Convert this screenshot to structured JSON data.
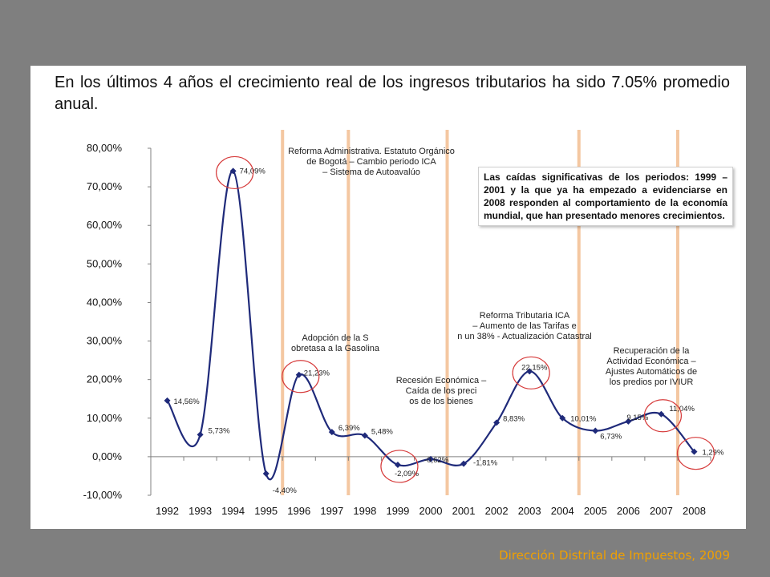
{
  "headline": "En los últimos 4 años el crecimiento real de los ingresos tributarios ha sido 7.05% promedio anual.",
  "footer": "Dirección Distrital de Impuestos, 2009",
  "callout": "Las caídas significativas de los periodos: 1999 – 2001 y la que ya ha empezado a evidenciarse en 2008 responden al comportamiento de la economía mundial, que han presentado menores crecimientos.",
  "colors": {
    "line": "#1f2a7a",
    "marker": "#1f2a7a",
    "reform_bar": "#f4c7a1",
    "circle": "#d63a3a",
    "footer": "#f0a000"
  },
  "chart_data": {
    "type": "line",
    "title": "",
    "xlabel": "",
    "ylabel": "",
    "ylim": [
      -10,
      80
    ],
    "y_ticks": [
      "-10,00%",
      "0,00%",
      "10,00%",
      "20,00%",
      "30,00%",
      "40,00%",
      "50,00%",
      "60,00%",
      "70,00%",
      "80,00%"
    ],
    "y_tick_values": [
      -10,
      0,
      10,
      20,
      30,
      40,
      50,
      60,
      70,
      80
    ],
    "categories": [
      "1992",
      "1993",
      "1994",
      "1995",
      "1996",
      "1997",
      "1998",
      "1999",
      "2000",
      "2001",
      "2002",
      "2003",
      "2004",
      "2005",
      "2006",
      "2007",
      "2008"
    ],
    "values": [
      14.56,
      5.73,
      74.09,
      -4.4,
      21.23,
      6.39,
      5.48,
      -2.09,
      -0.62,
      -1.81,
      8.83,
      22.15,
      10.01,
      6.73,
      9.15,
      11.04,
      1.29
    ],
    "labels": [
      "14,56%",
      "5,73%",
      "74,09%",
      "-4,40%",
      "21,23%",
      "6,39%",
      "5,48%",
      "-2,09%",
      "-0,62%",
      "-1,81%",
      "8,83%",
      "22,15%",
      "10,01%",
      "6,73%",
      "9,15%",
      "11,04%",
      "1,29%"
    ],
    "reform_lines_between": [
      [
        1995,
        1996
      ],
      [
        1997,
        1998
      ],
      [
        2000,
        2001
      ],
      [
        2004,
        2005
      ],
      [
        2007,
        2008
      ]
    ],
    "circled_years": [
      "1994",
      "1996",
      "1999",
      "2003",
      "2007",
      "2008"
    ],
    "annotations": [
      "Reforma Administrativa. Estatuto Orgánico de Bogotá – Cambio periodo ICA – Sistema de Autoavalúo",
      "Adopción de la Sobretasa a la Gasolina",
      "Recesión Económica – Caída de los precios de los bienes",
      "Reforma Tributaria ICA – Aumento de las Tarifas en un 38% - Actualización Catastral",
      "Recuperación de la Actividad Económica – Ajustes Automáticos de los predios por IVIUR"
    ],
    "grid": false,
    "legend": "none"
  }
}
